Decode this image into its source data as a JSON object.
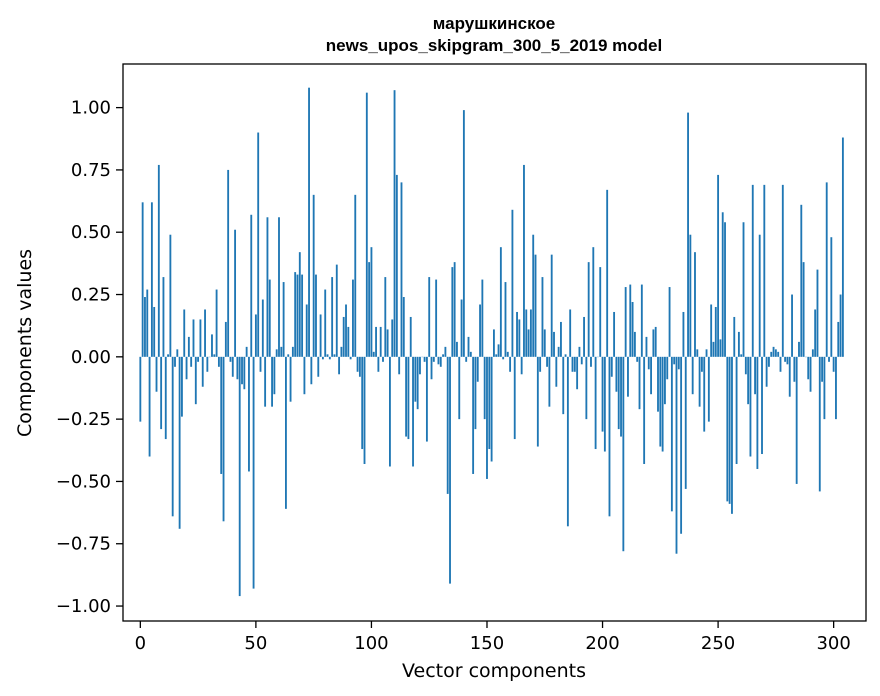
{
  "chart_data": {
    "type": "bar",
    "title_line1": "марушкинское",
    "title_line2": "news_upos_skipgram_300_5_2019 model",
    "xlabel": "Vector components",
    "ylabel": "Components values",
    "xlim": [
      -7.5,
      314
    ],
    "ylim": [
      -1.06,
      1.175
    ],
    "xticks": [
      0,
      50,
      100,
      150,
      200,
      250,
      300
    ],
    "yticks": [
      -1.0,
      -0.75,
      -0.5,
      -0.25,
      0.0,
      0.25,
      0.5,
      0.75,
      1.0
    ],
    "ytick_labels": [
      "−1.00",
      "−0.75",
      "−0.50",
      "−0.25",
      "0.00",
      "0.25",
      "0.50",
      "0.75",
      "1.00"
    ],
    "bar_color": "#1f77b4",
    "grid": false,
    "values": [
      -0.26,
      0.62,
      0.24,
      0.27,
      -0.4,
      0.62,
      0.2,
      -0.14,
      0.77,
      -0.29,
      0.32,
      -0.33,
      0.01,
      0.49,
      -0.64,
      -0.04,
      0.03,
      -0.69,
      -0.24,
      0.19,
      -0.09,
      0.08,
      -0.04,
      0.15,
      -0.19,
      -0.02,
      0.15,
      -0.12,
      0.19,
      -0.06,
      0.0,
      0.09,
      0.01,
      0.27,
      -0.04,
      -0.47,
      -0.66,
      0.14,
      0.75,
      -0.02,
      -0.08,
      0.51,
      -0.09,
      -0.96,
      -0.11,
      -0.13,
      0.04,
      -0.46,
      0.57,
      -0.93,
      0.17,
      0.9,
      -0.06,
      0.23,
      -0.2,
      0.56,
      0.31,
      -0.2,
      -0.15,
      0.03,
      0.56,
      0.04,
      0.3,
      -0.61,
      0.01,
      -0.18,
      0.04,
      0.34,
      0.33,
      0.42,
      0.33,
      -0.15,
      0.21,
      1.08,
      -0.11,
      0.65,
      0.33,
      -0.08,
      0.17,
      -0.01,
      0.27,
      0.01,
      -0.01,
      0.32,
      0.01,
      0.37,
      -0.07,
      0.04,
      0.16,
      0.21,
      0.12,
      -0.01,
      0.31,
      0.65,
      -0.06,
      -0.08,
      -0.37,
      -0.43,
      1.06,
      0.38,
      0.44,
      0.02,
      0.12,
      -0.06,
      0.12,
      -0.02,
      0.32,
      0.11,
      -0.44,
      0.15,
      1.07,
      0.73,
      -0.07,
      0.7,
      0.24,
      -0.32,
      -0.33,
      0.16,
      -0.44,
      -0.18,
      -0.21,
      -0.07,
      0.0,
      -0.02,
      -0.34,
      0.32,
      -0.09,
      -0.02,
      0.31,
      -0.03,
      -0.04,
      0.01,
      0.04,
      -0.55,
      -0.91,
      0.36,
      0.38,
      0.06,
      -0.25,
      0.23,
      0.99,
      -0.02,
      0.08,
      0.02,
      -0.47,
      -0.29,
      -0.1,
      0.21,
      0.31,
      -0.25,
      -0.49,
      -0.37,
      -0.42,
      0.11,
      0.01,
      0.05,
      0.44,
      -0.01,
      0.3,
      0.02,
      -0.06,
      0.59,
      -0.33,
      0.18,
      0.15,
      -0.07,
      0.77,
      0.19,
      0.11,
      0.19,
      0.49,
      0.41,
      -0.36,
      -0.06,
      0.32,
      0.11,
      -0.04,
      -0.2,
      0.41,
      0.1,
      -0.12,
      0.04,
      0.14,
      -0.23,
      0.01,
      -0.68,
      0.19,
      -0.06,
      -0.06,
      -0.13,
      0.04,
      -0.03,
      0.16,
      -0.25,
      0.38,
      -0.04,
      0.44,
      -0.37,
      0.0,
      0.36,
      -0.3,
      -0.38,
      0.67,
      -0.64,
      -0.08,
      0.18,
      -0.14,
      -0.29,
      -0.32,
      -0.78,
      0.28,
      -0.16,
      0.29,
      0.22,
      0.1,
      -0.02,
      -0.21,
      0.29,
      -0.43,
      0.08,
      -0.05,
      -0.15,
      0.11,
      0.12,
      -0.22,
      -0.36,
      -0.38,
      -0.19,
      -0.09,
      0.28,
      -0.62,
      -0.03,
      -0.79,
      -0.05,
      -0.71,
      0.18,
      -0.53,
      0.98,
      0.49,
      -0.15,
      0.42,
      0.03,
      -0.2,
      -0.06,
      -0.3,
      0.03,
      -0.26,
      0.21,
      0.06,
      0.2,
      0.73,
      0.07,
      0.58,
      0.54,
      -0.58,
      -0.59,
      -0.63,
      0.16,
      -0.43,
      0.1,
      0.01,
      0.54,
      -0.07,
      -0.19,
      -0.4,
      0.69,
      -0.15,
      -0.45,
      0.49,
      -0.39,
      0.69,
      -0.12,
      -0.04,
      0.02,
      0.04,
      0.03,
      0.02,
      -0.06,
      0.69,
      -0.02,
      -0.03,
      -0.16,
      0.25,
      -0.1,
      -0.51,
      0.06,
      0.61,
      0.38,
      0.0,
      -0.09,
      -0.14,
      0.03,
      0.19,
      0.35,
      -0.54,
      -0.1,
      -0.25,
      0.7,
      -0.02,
      0.48,
      -0.06,
      -0.25,
      0.14,
      0.25,
      0.88
    ]
  }
}
